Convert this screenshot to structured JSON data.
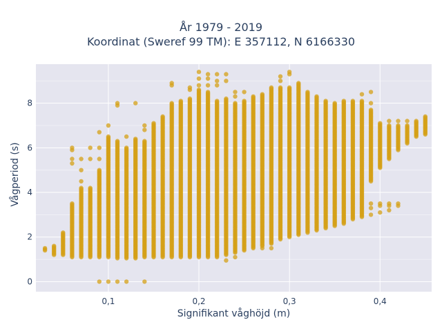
{
  "chart_data": {
    "type": "scatter",
    "title": "År 1979 - 2019",
    "subtitle": "Koordinat (Sweref 99 TM): E 357112, N 6166330",
    "xlabel": "Signifikant våghöjd (m)",
    "ylabel": "Vågperiod (s)",
    "xlim": [
      0.02,
      0.457
    ],
    "ylim": [
      -0.45,
      9.75
    ],
    "xticks": [
      0.1,
      0.2,
      0.3,
      0.4
    ],
    "xtick_labels": [
      "0,1",
      "0,2",
      "0,3",
      "0,4"
    ],
    "yticks": [
      0,
      2,
      4,
      6,
      8
    ],
    "ytick_labels": [
      "0",
      "2",
      "4",
      "6",
      "8"
    ],
    "grid": true,
    "legend": "none",
    "marker_color": "#d4a017",
    "background_color": "#e5e5ef",
    "columns": [
      {
        "x": 0.03,
        "y_min": 1.4,
        "y_max": 1.5
      },
      {
        "x": 0.04,
        "y_min": 1.2,
        "y_max": 1.6
      },
      {
        "x": 0.05,
        "y_min": 1.2,
        "y_max": 2.2
      },
      {
        "x": 0.06,
        "y_min": 1.1,
        "y_max": 3.5,
        "extra": [
          5.3,
          5.5,
          5.9,
          6.0
        ]
      },
      {
        "x": 0.07,
        "y_min": 1.1,
        "y_max": 4.2,
        "extra": [
          4.5,
          5.0,
          5.5
        ]
      },
      {
        "x": 0.08,
        "y_min": 1.1,
        "y_max": 4.2,
        "extra": [
          5.5,
          6.0
        ]
      },
      {
        "x": 0.09,
        "y_min": 1.1,
        "y_max": 5.0,
        "extra": [
          0.0,
          5.5,
          6.0,
          6.7
        ]
      },
      {
        "x": 0.1,
        "y_min": 1.1,
        "y_max": 6.5,
        "extra": [
          0.0,
          7.0
        ]
      },
      {
        "x": 0.11,
        "y_min": 1.05,
        "y_max": 6.3,
        "extra": [
          0.0,
          7.9,
          8.0
        ]
      },
      {
        "x": 0.12,
        "y_min": 1.05,
        "y_max": 6.0,
        "extra": [
          0.0,
          6.5
        ]
      },
      {
        "x": 0.13,
        "y_min": 1.05,
        "y_max": 6.4,
        "extra": [
          8.0
        ]
      },
      {
        "x": 0.14,
        "y_min": 1.1,
        "y_max": 6.3,
        "extra": [
          0.0,
          6.8,
          7.0
        ]
      },
      {
        "x": 0.15,
        "y_min": 1.1,
        "y_max": 7.1
      },
      {
        "x": 0.16,
        "y_min": 1.1,
        "y_max": 7.4
      },
      {
        "x": 0.17,
        "y_min": 1.1,
        "y_max": 8.0,
        "extra": [
          8.8,
          8.9
        ]
      },
      {
        "x": 0.18,
        "y_min": 1.1,
        "y_max": 8.1
      },
      {
        "x": 0.19,
        "y_min": 1.1,
        "y_max": 8.2,
        "extra": [
          8.6,
          8.7
        ]
      },
      {
        "x": 0.2,
        "y_min": 1.1,
        "y_max": 8.6,
        "extra": [
          8.8,
          9.1,
          9.4
        ]
      },
      {
        "x": 0.21,
        "y_min": 1.1,
        "y_max": 8.5,
        "extra": [
          8.8,
          9.1,
          9.3
        ]
      },
      {
        "x": 0.22,
        "y_min": 1.1,
        "y_max": 8.1,
        "extra": [
          8.8,
          9.0,
          9.3
        ]
      },
      {
        "x": 0.23,
        "y_min": 1.2,
        "y_max": 8.2,
        "extra": [
          0.95,
          9.0,
          9.3
        ]
      },
      {
        "x": 0.24,
        "y_min": 1.3,
        "y_max": 8.0,
        "extra": [
          1.1,
          8.3,
          8.5
        ]
      },
      {
        "x": 0.25,
        "y_min": 1.4,
        "y_max": 8.1,
        "extra": [
          8.5
        ]
      },
      {
        "x": 0.26,
        "y_min": 1.5,
        "y_max": 8.3
      },
      {
        "x": 0.27,
        "y_min": 1.6,
        "y_max": 8.4,
        "extra": [
          1.5
        ]
      },
      {
        "x": 0.28,
        "y_min": 1.7,
        "y_max": 8.7,
        "extra": [
          1.5
        ]
      },
      {
        "x": 0.29,
        "y_min": 1.9,
        "y_max": 8.7,
        "extra": [
          9.0,
          9.2
        ]
      },
      {
        "x": 0.3,
        "y_min": 2.0,
        "y_max": 8.7,
        "extra": [
          9.3,
          9.4
        ]
      },
      {
        "x": 0.31,
        "y_min": 2.1,
        "y_max": 8.9
      },
      {
        "x": 0.32,
        "y_min": 2.2,
        "y_max": 8.5
      },
      {
        "x": 0.33,
        "y_min": 2.3,
        "y_max": 8.3
      },
      {
        "x": 0.34,
        "y_min": 2.4,
        "y_max": 8.1
      },
      {
        "x": 0.35,
        "y_min": 2.5,
        "y_max": 8.0
      },
      {
        "x": 0.36,
        "y_min": 2.6,
        "y_max": 8.1
      },
      {
        "x": 0.37,
        "y_min": 2.8,
        "y_max": 8.1
      },
      {
        "x": 0.38,
        "y_min": 2.9,
        "y_max": 8.1,
        "extra": [
          8.4
        ]
      },
      {
        "x": 0.39,
        "y_min": 4.5,
        "y_max": 7.7,
        "extra": [
          3.0,
          3.3,
          3.5,
          8.0,
          8.5
        ]
      },
      {
        "x": 0.4,
        "y_min": 5.1,
        "y_max": 7.1,
        "extra": [
          3.1,
          3.4,
          3.5
        ]
      },
      {
        "x": 0.41,
        "y_min": 5.5,
        "y_max": 7.0,
        "extra": [
          3.2,
          3.4,
          3.5,
          7.2
        ]
      },
      {
        "x": 0.42,
        "y_min": 5.9,
        "y_max": 7.0,
        "extra": [
          3.4,
          3.5,
          7.2
        ]
      },
      {
        "x": 0.43,
        "y_min": 6.2,
        "y_max": 7.0,
        "extra": [
          7.2
        ]
      },
      {
        "x": 0.44,
        "y_min": 6.5,
        "y_max": 7.2
      },
      {
        "x": 0.45,
        "y_min": 6.6,
        "y_max": 7.4
      }
    ]
  }
}
